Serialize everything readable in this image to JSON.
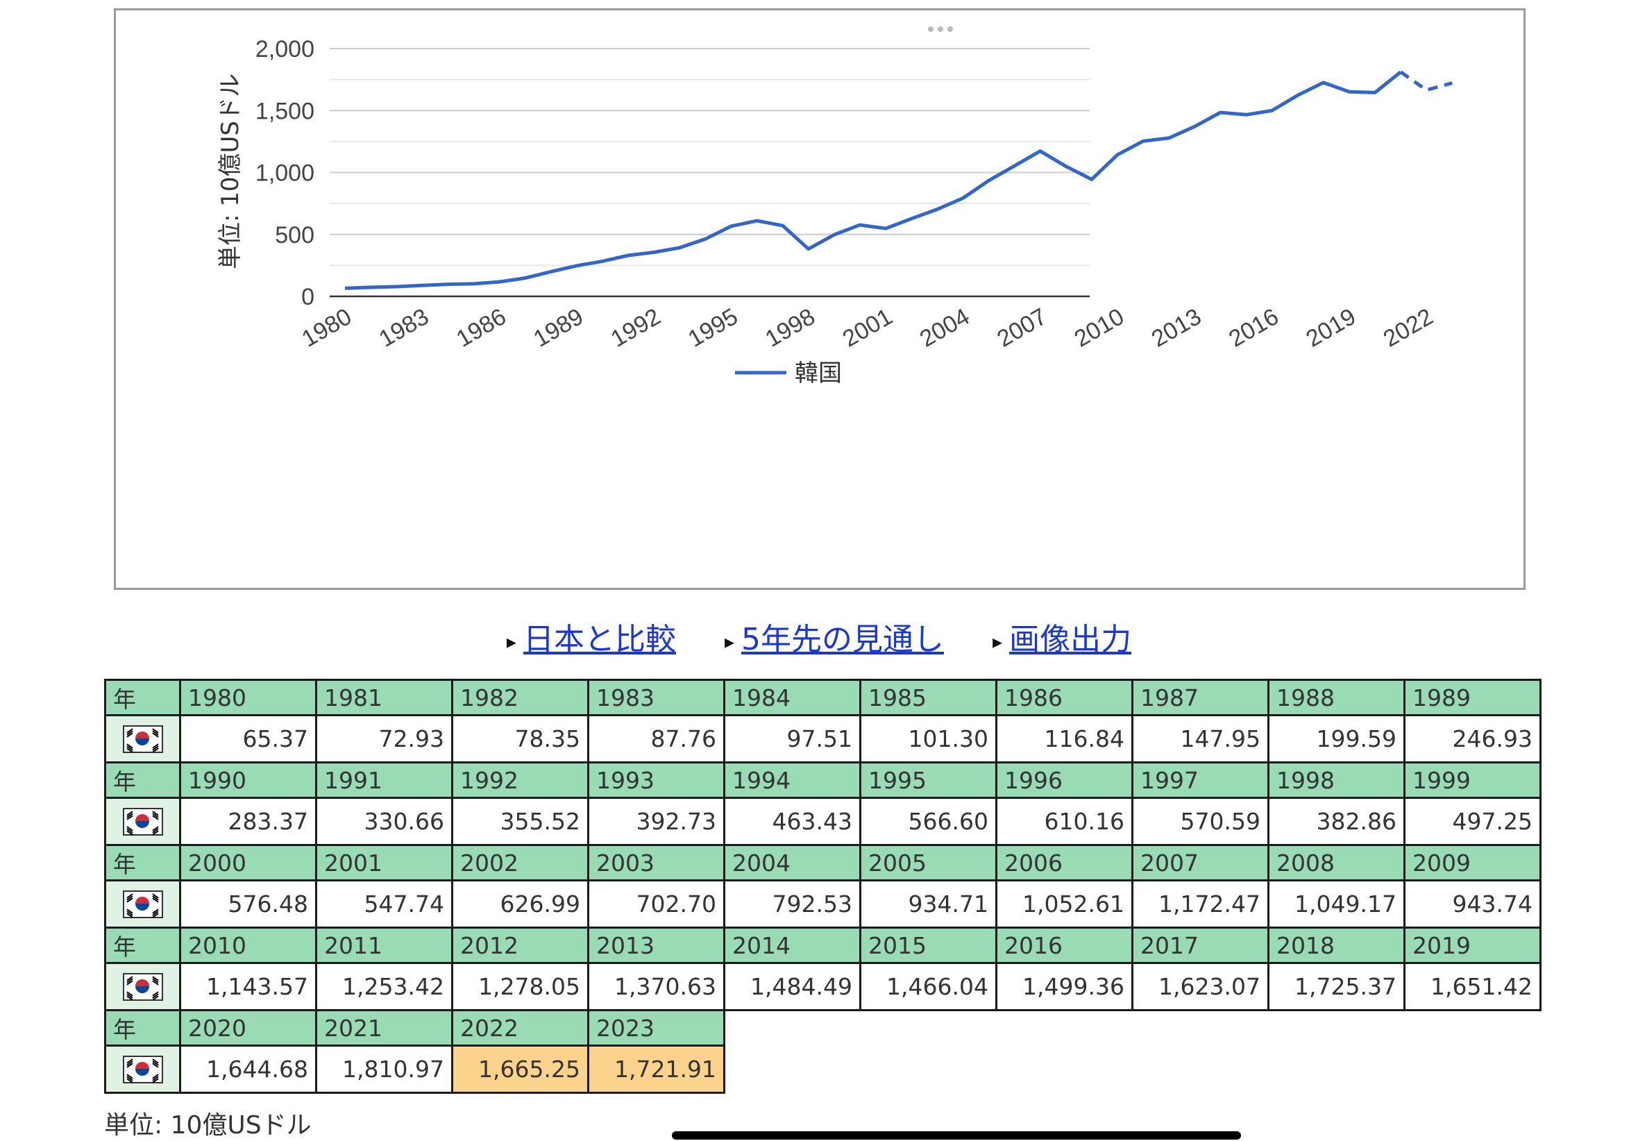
{
  "chart": {
    "ylabel": "単位: 10億USドル",
    "legend": "韓国",
    "line_color": "#3366cc"
  },
  "chart_data": {
    "type": "line",
    "ylabel": "単位: 10億USドル",
    "ylim": [
      0,
      2000
    ],
    "yticks": [
      "2,000",
      "1,500",
      "1,000",
      "500",
      "0"
    ],
    "ytick_values": [
      2000,
      1500,
      1000,
      500,
      0
    ],
    "xticks": [
      "1980",
      "1983",
      "1986",
      "1989",
      "1992",
      "1995",
      "1998",
      "2001",
      "2004",
      "2007",
      "2010",
      "2013",
      "2016",
      "2019",
      "2022"
    ],
    "grid": true,
    "legend_position": "bottom",
    "estimate_from": 2022,
    "series": [
      {
        "name": "韓国",
        "x": [
          1980,
          1981,
          1982,
          1983,
          1984,
          1985,
          1986,
          1987,
          1988,
          1989,
          1990,
          1991,
          1992,
          1993,
          1994,
          1995,
          1996,
          1997,
          1998,
          1999,
          2000,
          2001,
          2002,
          2003,
          2004,
          2005,
          2006,
          2007,
          2008,
          2009,
          2010,
          2011,
          2012,
          2013,
          2014,
          2015,
          2016,
          2017,
          2018,
          2019,
          2020,
          2021,
          2022,
          2023
        ],
        "values": [
          65.37,
          72.93,
          78.35,
          87.76,
          97.51,
          101.3,
          116.84,
          147.95,
          199.59,
          246.93,
          283.37,
          330.66,
          355.52,
          392.73,
          463.43,
          566.6,
          610.16,
          570.59,
          382.86,
          497.25,
          576.48,
          547.74,
          626.99,
          702.7,
          792.53,
          934.71,
          1052.61,
          1172.47,
          1049.17,
          943.74,
          1143.57,
          1253.42,
          1278.05,
          1370.63,
          1484.49,
          1466.04,
          1499.36,
          1623.07,
          1725.37,
          1651.42,
          1644.68,
          1810.97,
          1665.25,
          1721.91
        ]
      }
    ]
  },
  "links": [
    "日本と比較",
    "5年先の見通し",
    "画像出力"
  ],
  "table": {
    "year_header": "年",
    "flag_name": "south-korea-flag-icon",
    "estimate_color": "#fbd38d",
    "header_color": "#98dbb5",
    "rows": [
      {
        "years": [
          "1980",
          "1981",
          "1982",
          "1983",
          "1984",
          "1985",
          "1986",
          "1987",
          "1988",
          "1989"
        ],
        "values": [
          "65.37",
          "72.93",
          "78.35",
          "87.76",
          "97.51",
          "101.30",
          "116.84",
          "147.95",
          "199.59",
          "246.93"
        ],
        "estimates": [
          false,
          false,
          false,
          false,
          false,
          false,
          false,
          false,
          false,
          false
        ]
      },
      {
        "years": [
          "1990",
          "1991",
          "1992",
          "1993",
          "1994",
          "1995",
          "1996",
          "1997",
          "1998",
          "1999"
        ],
        "values": [
          "283.37",
          "330.66",
          "355.52",
          "392.73",
          "463.43",
          "566.60",
          "610.16",
          "570.59",
          "382.86",
          "497.25"
        ],
        "estimates": [
          false,
          false,
          false,
          false,
          false,
          false,
          false,
          false,
          false,
          false
        ]
      },
      {
        "years": [
          "2000",
          "2001",
          "2002",
          "2003",
          "2004",
          "2005",
          "2006",
          "2007",
          "2008",
          "2009"
        ],
        "values": [
          "576.48",
          "547.74",
          "626.99",
          "702.70",
          "792.53",
          "934.71",
          "1,052.61",
          "1,172.47",
          "1,049.17",
          "943.74"
        ],
        "estimates": [
          false,
          false,
          false,
          false,
          false,
          false,
          false,
          false,
          false,
          false
        ]
      },
      {
        "years": [
          "2010",
          "2011",
          "2012",
          "2013",
          "2014",
          "2015",
          "2016",
          "2017",
          "2018",
          "2019"
        ],
        "values": [
          "1,143.57",
          "1,253.42",
          "1,278.05",
          "1,370.63",
          "1,484.49",
          "1,466.04",
          "1,499.36",
          "1,623.07",
          "1,725.37",
          "1,651.42"
        ],
        "estimates": [
          false,
          false,
          false,
          false,
          false,
          false,
          false,
          false,
          false,
          false
        ]
      },
      {
        "years": [
          "2020",
          "2021",
          "2022",
          "2023"
        ],
        "values": [
          "1,644.68",
          "1,810.97",
          "1,665.25",
          "1,721.91"
        ],
        "estimates": [
          false,
          false,
          true,
          true
        ]
      }
    ]
  },
  "unit_note": "単位: 10億USドル"
}
